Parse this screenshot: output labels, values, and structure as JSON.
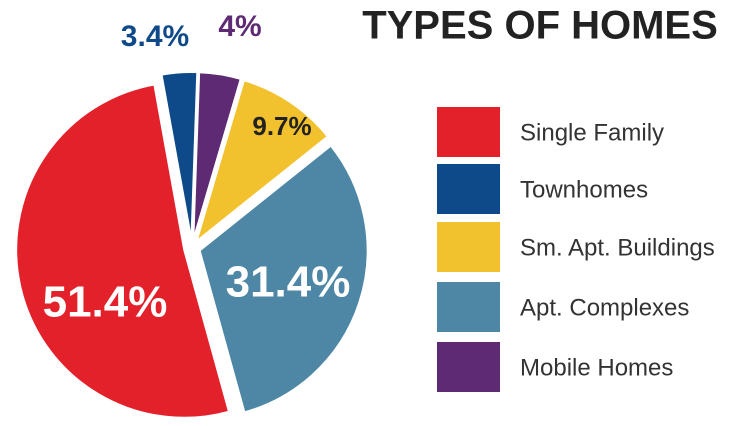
{
  "chart_data": {
    "type": "pie",
    "title": "TYPES OF HOMES",
    "categories": [
      "Single Family",
      "Townhomes",
      "Sm. Apt. Buildings",
      "Apt. Complexes",
      "Mobile Homes"
    ],
    "values": [
      51.4,
      3.4,
      9.7,
      31.4,
      4
    ],
    "value_labels": [
      "51.4%",
      "3.4%",
      "9.7%",
      "31.4%",
      "4%"
    ],
    "colors": [
      "#e3212b",
      "#0e4a8a",
      "#f2c12e",
      "#4d87a5",
      "#5e2a73"
    ],
    "legend": "right"
  }
}
